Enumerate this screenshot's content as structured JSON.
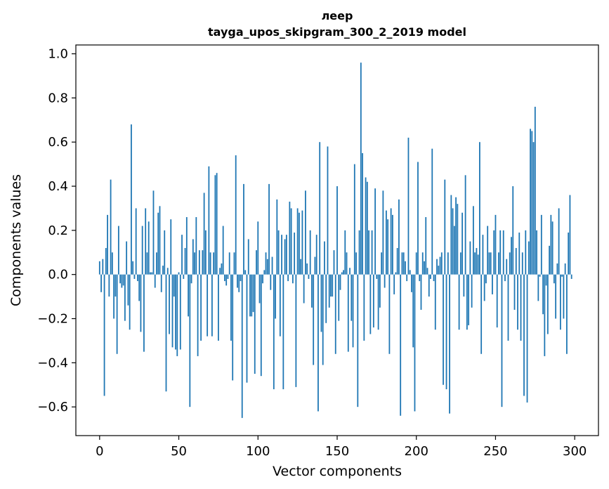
{
  "chart_data": {
    "type": "bar",
    "title": "леер",
    "subtitle": "tayga_upos_skipgram_300_2_2019 model",
    "xlabel": "Vector components",
    "ylabel": "Components values",
    "xlim": [
      -15,
      315
    ],
    "ylim": [
      -0.73,
      1.04
    ],
    "xticks": [
      0,
      50,
      100,
      150,
      200,
      250,
      300
    ],
    "yticks": [
      -0.6,
      -0.4,
      -0.2,
      0.0,
      0.2,
      0.4,
      0.6,
      0.8,
      1.0
    ],
    "xtick_labels": [
      "0",
      "50",
      "100",
      "150",
      "200",
      "250",
      "300"
    ],
    "ytick_labels": [
      "−0.6",
      "−0.4",
      "−0.2",
      "0.0",
      "0.2",
      "0.4",
      "0.6",
      "0.8",
      "1.0"
    ],
    "bar_color": "#1f77b4",
    "grid": false,
    "legend": "none",
    "values": [
      0.06,
      -0.08,
      0.07,
      -0.55,
      0.12,
      0.27,
      -0.1,
      0.43,
      0.1,
      -0.2,
      -0.1,
      -0.36,
      0.22,
      -0.04,
      -0.06,
      -0.05,
      -0.21,
      0.15,
      -0.14,
      -0.25,
      0.68,
      0.06,
      -0.02,
      0.3,
      -0.03,
      -0.12,
      -0.26,
      0.22,
      -0.35,
      0.3,
      0.1,
      0.24,
      0.01,
      0.01,
      0.38,
      -0.06,
      0.1,
      0.28,
      0.31,
      -0.08,
      0.04,
      0.2,
      -0.53,
      0.03,
      -0.27,
      0.25,
      -0.33,
      -0.1,
      -0.34,
      -0.37,
      0.01,
      -0.34,
      0.18,
      -0.02,
      0.12,
      0.26,
      -0.19,
      -0.6,
      -0.04,
      0.16,
      0.1,
      0.26,
      -0.37,
      0.11,
      -0.3,
      0.11,
      0.37,
      0.2,
      -0.28,
      0.49,
      0.1,
      -0.28,
      0.1,
      0.45,
      0.46,
      -0.3,
      0.03,
      0.05,
      0.22,
      -0.03,
      -0.05,
      -0.02,
      0.1,
      -0.3,
      -0.48,
      0.1,
      0.54,
      -0.06,
      -0.08,
      -0.03,
      -0.65,
      0.41,
      0.02,
      -0.49,
      0.16,
      -0.19,
      -0.19,
      -0.17,
      -0.45,
      0.11,
      0.24,
      -0.13,
      -0.46,
      -0.04,
      0.02,
      0.1,
      0.07,
      0.41,
      -0.07,
      0.08,
      -0.52,
      -0.2,
      0.34,
      0.2,
      -0.28,
      0.18,
      -0.52,
      0.16,
      0.18,
      -0.03,
      0.33,
      0.3,
      -0.04,
      0.19,
      -0.51,
      0.3,
      0.28,
      0.07,
      0.29,
      -0.13,
      0.38,
      0.05,
      -0.02,
      0.2,
      -0.15,
      -0.41,
      0.08,
      0.18,
      -0.62,
      0.6,
      -0.26,
      -0.41,
      0.15,
      -0.22,
      0.58,
      -0.15,
      -0.1,
      -0.1,
      0.11,
      -0.36,
      0.4,
      -0.21,
      -0.07,
      0.01,
      0.02,
      0.2,
      0.1,
      -0.35,
      0.03,
      -0.21,
      -0.33,
      0.5,
      0.1,
      -0.6,
      0.2,
      0.96,
      0.55,
      -0.3,
      0.44,
      0.42,
      0.2,
      -0.27,
      0.2,
      -0.24,
      0.39,
      -0.02,
      -0.25,
      -0.15,
      0.1,
      0.38,
      -0.06,
      0.29,
      0.25,
      -0.36,
      0.3,
      0.27,
      -0.09,
      0.01,
      0.12,
      0.34,
      -0.64,
      0.1,
      0.1,
      0.06,
      -0.03,
      0.62,
      0.02,
      -0.08,
      -0.33,
      -0.62,
      0.1,
      0.51,
      -0.03,
      -0.16,
      0.1,
      0.06,
      0.26,
      0.03,
      -0.1,
      -0.02,
      0.57,
      -0.03,
      -0.25,
      0.07,
      0.04,
      0.08,
      0.1,
      -0.5,
      0.43,
      -0.52,
      0.1,
      -0.63,
      0.36,
      0.3,
      0.22,
      0.35,
      0.32,
      -0.25,
      0.1,
      0.28,
      -0.1,
      0.45,
      -0.25,
      -0.23,
      0.15,
      -0.15,
      0.31,
      0.1,
      0.12,
      0.09,
      0.6,
      -0.36,
      0.18,
      -0.12,
      -0.04,
      0.22,
      0.1,
      0.1,
      -0.09,
      0.2,
      0.27,
      -0.24,
      0.1,
      0.2,
      -0.6,
      0.2,
      -0.03,
      0.07,
      -0.3,
      0.1,
      0.17,
      0.4,
      -0.16,
      0.12,
      -0.25,
      0.19,
      -0.3,
      0.1,
      -0.55,
      0.2,
      -0.58,
      0.15,
      0.66,
      0.65,
      0.6,
      0.76,
      0.2,
      -0.12,
      -0.01,
      0.27,
      -0.18,
      -0.37,
      -0.05,
      -0.27,
      0.13,
      0.27,
      0.24,
      -0.04,
      -0.2,
      0.05,
      0.3,
      -0.25,
      -0.01,
      -0.2,
      0.05,
      -0.36,
      0.19,
      0.36,
      -0.02
    ]
  }
}
